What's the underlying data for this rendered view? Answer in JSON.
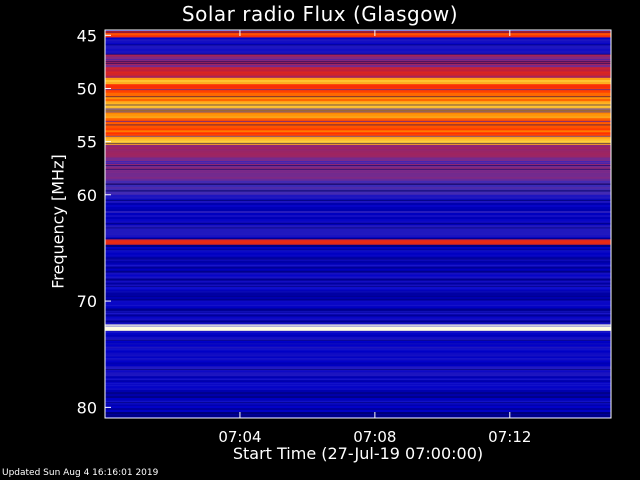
{
  "chart_data": {
    "type": "heatmap",
    "title": "Solar radio Flux (Glasgow)",
    "xlabel": "Start Time (27-Jul-19 07:00:00)",
    "ylabel": "Frequency [MHz]",
    "footer": "Updated Sun Aug  4 16:16:01 2019",
    "x_ticks": [
      "07:04",
      "07:08",
      "07:12"
    ],
    "x_tick_minutes": [
      4,
      8,
      12
    ],
    "xlim_minutes": [
      0,
      15
    ],
    "y_ticks": [
      45,
      50,
      55,
      60,
      70,
      80
    ],
    "ylim_mhz": [
      44.5,
      81
    ],
    "colormap": [
      "#000050",
      "#0000c8",
      "#3a2ab8",
      "#7a2a8a",
      "#c0203a",
      "#ff3000",
      "#ff8a00",
      "#ffe24a",
      "#fffde0"
    ],
    "bands": [
      {
        "f0": 44.6,
        "f1": 45.2,
        "level": 0.62
      },
      {
        "f0": 45.2,
        "f1": 46.8,
        "level": 0.16
      },
      {
        "f0": 46.8,
        "f1": 48.0,
        "level": 0.42
      },
      {
        "f0": 48.0,
        "f1": 49.0,
        "level": 0.5
      },
      {
        "f0": 49.0,
        "f1": 49.6,
        "level": 0.78
      },
      {
        "f0": 49.6,
        "f1": 50.4,
        "level": 0.6
      },
      {
        "f0": 50.4,
        "f1": 51.2,
        "level": 0.72
      },
      {
        "f0": 51.2,
        "f1": 52.0,
        "level": 0.84
      },
      {
        "f0": 52.0,
        "f1": 53.0,
        "level": 0.74
      },
      {
        "f0": 53.0,
        "f1": 54.5,
        "level": 0.68
      },
      {
        "f0": 54.5,
        "f1": 55.3,
        "level": 0.8
      },
      {
        "f0": 55.3,
        "f1": 56.5,
        "level": 0.45
      },
      {
        "f0": 56.5,
        "f1": 58.5,
        "level": 0.36
      },
      {
        "f0": 58.5,
        "f1": 60.0,
        "level": 0.28
      },
      {
        "f0": 60.0,
        "f1": 64.2,
        "level": 0.15
      },
      {
        "f0": 64.2,
        "f1": 64.7,
        "level": 0.62
      },
      {
        "f0": 64.7,
        "f1": 72.2,
        "level": 0.12
      },
      {
        "f0": 72.2,
        "f1": 72.8,
        "level": 0.97
      },
      {
        "f0": 72.8,
        "f1": 78.0,
        "level": 0.14
      },
      {
        "f0": 78.0,
        "f1": 81.0,
        "level": 0.1
      }
    ],
    "colors": {
      "background": "#000000",
      "text": "#ffffff",
      "axis": "#ffffff"
    }
  }
}
